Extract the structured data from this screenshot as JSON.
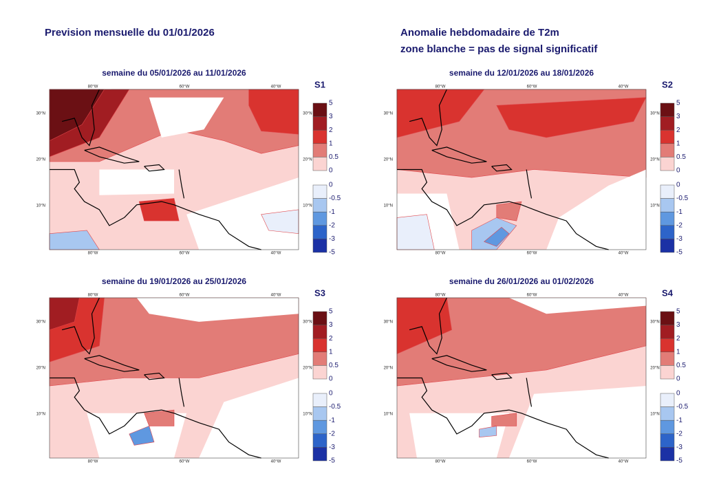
{
  "header": {
    "left_title": "Prevision mensuelle du 01/01/2026",
    "right_title_lines": [
      "Anomalie hebdomadaire de T2m",
      "zone blanche = pas de signal significatif"
    ]
  },
  "longitude_labels": [
    "80°W",
    "60°W",
    "40°W"
  ],
  "latitude_labels": [
    "30°N",
    "20°N",
    "10°N"
  ],
  "colorbar": {
    "warm_ticks": [
      5,
      3,
      2,
      1,
      0.5,
      0
    ],
    "warm_colors": [
      "#6b1014",
      "#a11d22",
      "#d9332f",
      "#e27c77",
      "#fbd4d2"
    ],
    "cold_ticks": [
      0,
      -0.5,
      -1,
      -2,
      -3,
      -5
    ],
    "cold_colors": [
      "#e9effb",
      "#a8c7f0",
      "#5f98e0",
      "#2d64c9",
      "#1b31a5"
    ]
  },
  "panels": [
    {
      "subtitle": "semaine du 05/01/2026 au 11/01/2026",
      "label": "S1"
    },
    {
      "subtitle": "semaine du 12/01/2026 au 18/01/2026",
      "label": "S2"
    },
    {
      "subtitle": "semaine du 19/01/2026 au 25/01/2026",
      "label": "S3"
    },
    {
      "subtitle": "semaine du 26/01/2026 au 01/02/2026",
      "label": "S4"
    }
  ]
}
